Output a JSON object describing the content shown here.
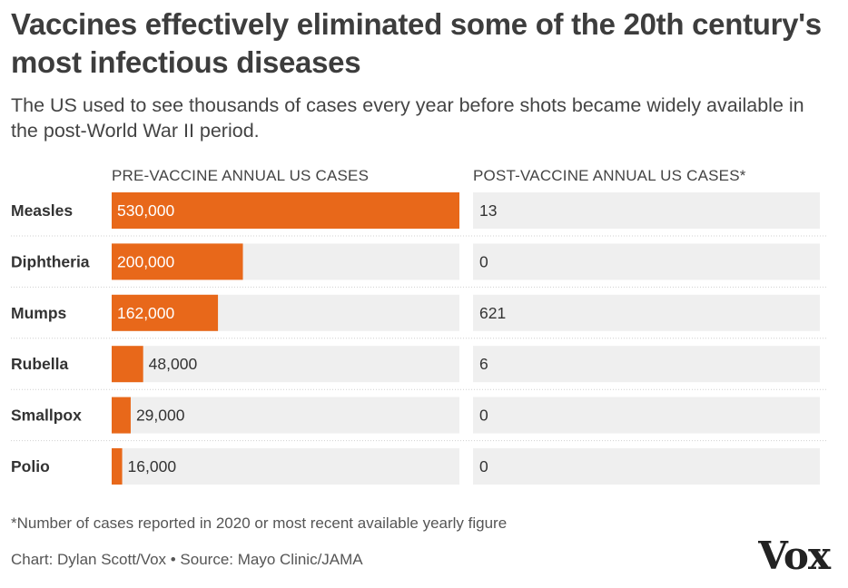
{
  "title": "Vaccines effectively eliminated some of the 20th century's most infectious diseases",
  "subtitle": "The US used to see thousands of cases every year before shots became widely available in the post-World War II period.",
  "footnote": "*Number of cases reported in 2020 or most recent available yearly figure",
  "credit": "Chart: Dylan Scott/Vox • Source: Mayo Clinic/JAMA",
  "logo": "Vox",
  "colors": {
    "bar": "#e8681a",
    "track": "#efefef",
    "label": "#333333",
    "divider": "#d0d0d0"
  },
  "chart_data": {
    "type": "bar",
    "orientation": "horizontal",
    "categories": [
      "Measles",
      "Diphtheria",
      "Mumps",
      "Rubella",
      "Smallpox",
      "Polio"
    ],
    "series": [
      {
        "name": "PRE-VACCINE ANNUAL US CASES",
        "values": [
          530000,
          200000,
          162000,
          48000,
          29000,
          16000
        ],
        "labels": [
          "530,000",
          "200,000",
          "162,000",
          "48,000",
          "29,000",
          "16,000"
        ]
      },
      {
        "name": "POST-VACCINE ANNUAL US CASES*",
        "values": [
          13,
          0,
          621,
          6,
          0,
          0
        ],
        "labels": [
          "13",
          "0",
          "621",
          "6",
          "0",
          "0"
        ]
      }
    ],
    "xlim": [
      0,
      530000
    ],
    "title": "Vaccines effectively eliminated some of the 20th century's most infectious diseases"
  }
}
